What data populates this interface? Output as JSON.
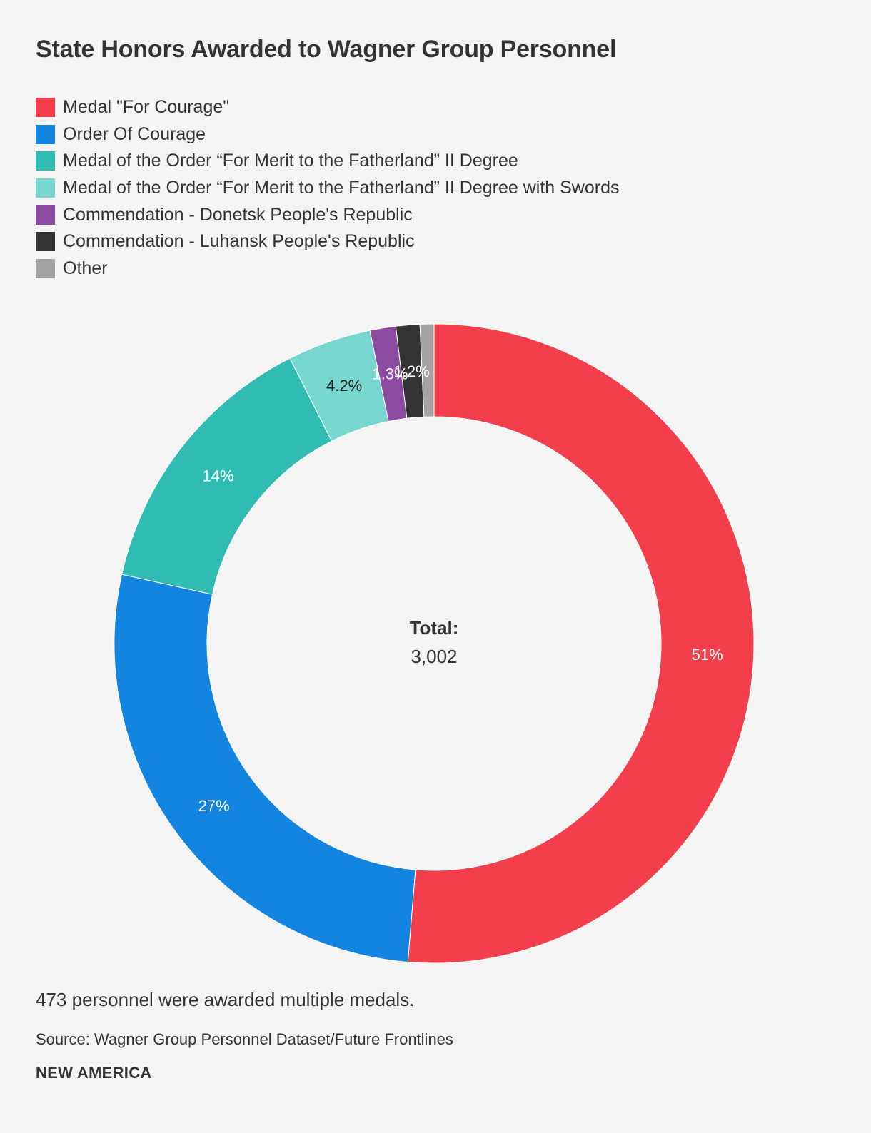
{
  "chart_data": {
    "type": "pie",
    "title": "State Honors Awarded to Wagner Group Personnel",
    "categories": [
      "Medal \"For Courage\"",
      "Order Of Courage",
      "Medal of the Order “For Merit to the Fatherland” II Degree",
      "Medal of the Order “For Merit to the Fatherland” II Degree with Swords",
      "Commendation - Donetsk People's Republic",
      "Commendation - Luhansk People's Republic",
      "Other"
    ],
    "values": [
      51,
      27,
      14,
      4.2,
      1.3,
      1.2,
      0.7
    ],
    "value_labels": [
      "51%",
      "27%",
      "14%",
      "4.2%",
      "1.3%",
      "1.2%",
      ""
    ],
    "colors": [
      "#f23f4b",
      "#1384e0",
      "#30bcb2",
      "#77d6d0",
      "#8c4aa1",
      "#333333",
      "#a3a3a3"
    ],
    "label_colors": [
      "#ffffff",
      "#ffffff",
      "#ffffff",
      "#222222",
      "#ffffff",
      "#ffffff",
      "#ffffff"
    ],
    "donut": true,
    "legend_position": "top-left",
    "center_label": "Total:",
    "center_value": "3,002"
  },
  "note": "473 personnel were awarded multiple medals.",
  "source": "Source: Wagner Group Personnel Dataset/Future Frontlines",
  "brand": "NEW AMERICA"
}
